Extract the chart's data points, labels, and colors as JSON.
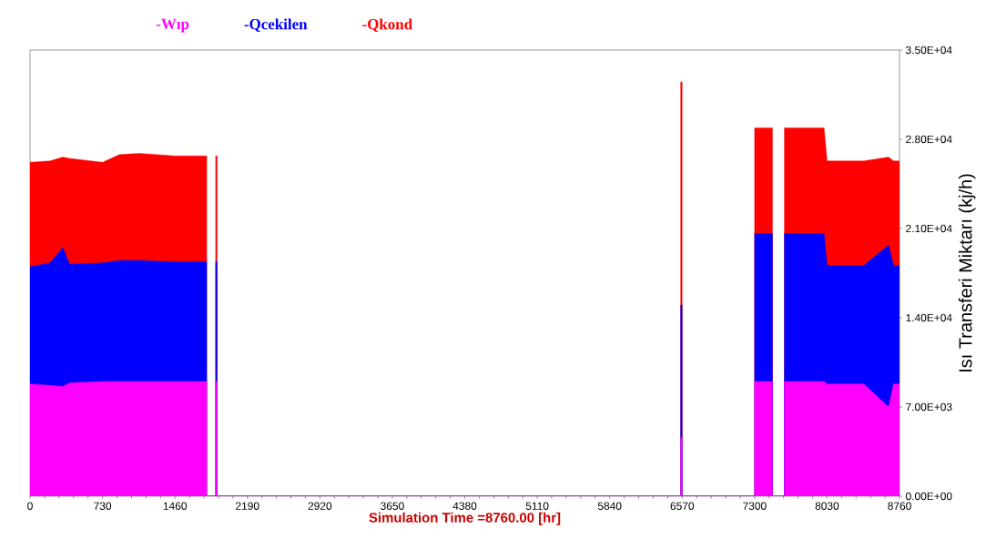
{
  "chart_data": {
    "type": "area",
    "xlabel": "Simulation Time =8760.00 [hr]",
    "ylabel": "Isı Transferi Miktarı (kj/h)",
    "x": [
      0,
      0,
      200,
      330,
      400,
      730,
      900,
      1100,
      1460,
      1780,
      1780,
      1870,
      1870,
      1885,
      1885,
      6555,
      6555,
      6570,
      6570,
      7300,
      7300,
      7480,
      7480,
      7600,
      7600,
      8000,
      8030,
      8400,
      8650,
      8700,
      8760,
      8760
    ],
    "series": [
      {
        "name": "-Wıp",
        "color": "#ff00ff",
        "values": [
          0,
          8800,
          8700,
          8600,
          8900,
          9000,
          9000,
          9000,
          9000,
          9000,
          0,
          0,
          9000,
          9000,
          0,
          0,
          4600,
          4600,
          0,
          0,
          9000,
          9000,
          0,
          0,
          9000,
          9000,
          8800,
          8800,
          7000,
          8800,
          8800,
          0
        ]
      },
      {
        "name": "-Qcekilen",
        "color": "#0000ff",
        "values": [
          0,
          18000,
          18300,
          19500,
          18200,
          18300,
          18500,
          18500,
          18400,
          18400,
          0,
          0,
          18400,
          18400,
          0,
          0,
          15000,
          15000,
          0,
          0,
          20600,
          20600,
          0,
          0,
          20600,
          20600,
          18100,
          18100,
          19700,
          18100,
          18100,
          0
        ]
      },
      {
        "name": "-Qkond",
        "color": "#ff0000",
        "values": [
          0,
          26200,
          26300,
          26600,
          26500,
          26200,
          26800,
          26900,
          26700,
          26700,
          0,
          0,
          26700,
          26700,
          0,
          0,
          32500,
          32500,
          0,
          0,
          28900,
          28900,
          0,
          0,
          28900,
          28900,
          26300,
          26300,
          26600,
          26300,
          26300,
          0
        ]
      }
    ],
    "xlim": [
      0,
      8760
    ],
    "ylim": [
      0,
      35000
    ],
    "xticks": [
      0,
      730,
      1460,
      2190,
      2920,
      3650,
      4380,
      5110,
      5840,
      6570,
      7300,
      8030,
      8760
    ],
    "yticks": [
      {
        "value": 0,
        "label": "0.00E+00"
      },
      {
        "value": 7000,
        "label": "7.00E+03"
      },
      {
        "value": 14000,
        "label": "1.40E+04"
      },
      {
        "value": 21000,
        "label": "2.10E+04"
      },
      {
        "value": 28000,
        "label": "2.80E+04"
      },
      {
        "value": 35000,
        "label": "3.50E+04"
      }
    ],
    "legend": "top left"
  }
}
